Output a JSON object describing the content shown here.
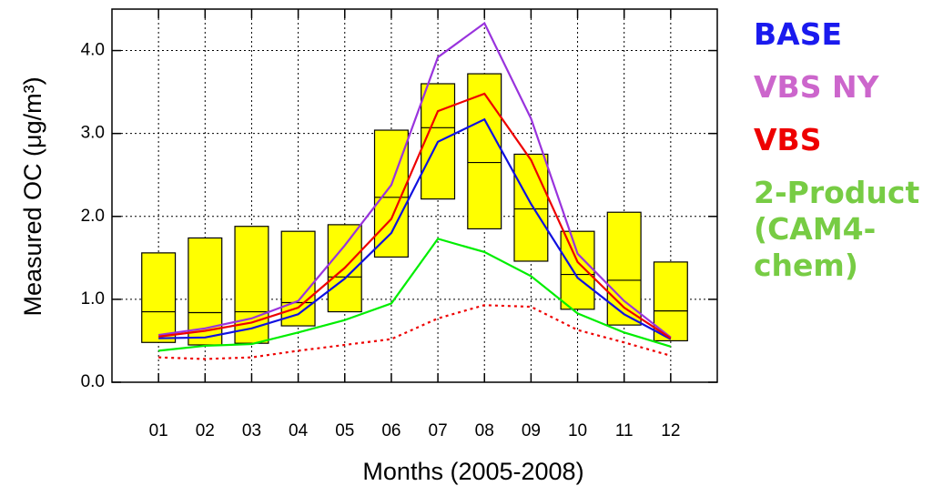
{
  "chart_data": {
    "type": "box-line",
    "x_label": "Months (2005-2008)",
    "y_label": "Measured OC (μg/m³)",
    "categories": [
      "01",
      "02",
      "03",
      "04",
      "05",
      "06",
      "07",
      "08",
      "09",
      "10",
      "11",
      "12"
    ],
    "ylim": [
      0,
      4.5
    ],
    "yticks": [
      {
        "value": 0,
        "label": "0.0"
      },
      {
        "value": 1,
        "label": "1.0"
      },
      {
        "value": 2,
        "label": "2.0"
      },
      {
        "value": 3,
        "label": "3.0"
      },
      {
        "value": 4,
        "label": "4.0"
      }
    ],
    "grid": true,
    "boxes": {
      "color": "#ffff00",
      "low": [
        0.48,
        0.45,
        0.47,
        0.68,
        0.85,
        1.51,
        2.21,
        1.85,
        1.46,
        0.88,
        0.69,
        0.5
      ],
      "median": [
        0.85,
        0.84,
        0.85,
        0.96,
        1.27,
        2.23,
        3.07,
        2.65,
        2.09,
        1.3,
        1.23,
        0.86
      ],
      "high": [
        1.56,
        1.74,
        1.88,
        1.82,
        1.9,
        3.04,
        3.6,
        3.72,
        2.75,
        1.82,
        2.05,
        1.45
      ]
    },
    "series": [
      {
        "name": "BASE",
        "color": "#1010e0",
        "label_color": "#1a1aee",
        "values": [
          0.53,
          0.54,
          0.65,
          0.82,
          1.25,
          1.8,
          2.9,
          3.17,
          2.15,
          1.26,
          0.82,
          0.52
        ]
      },
      {
        "name": "VBS NY",
        "color": "#9933dd",
        "label_color": "#cc66cc",
        "values": [
          0.57,
          0.65,
          0.77,
          0.98,
          1.65,
          2.38,
          3.92,
          4.33,
          3.18,
          1.55,
          0.98,
          0.54
        ]
      },
      {
        "name": "VBS",
        "color": "#ee0000",
        "label_color": "#ee0000",
        "values": [
          0.55,
          0.62,
          0.72,
          0.9,
          1.38,
          1.97,
          3.27,
          3.48,
          2.68,
          1.45,
          0.9,
          0.53
        ]
      },
      {
        "name": "2-Product (CAM4-chem)",
        "color": "#00ee00",
        "label_color": "#77cc44",
        "values": [
          0.38,
          0.44,
          0.46,
          0.6,
          0.75,
          0.95,
          1.73,
          1.57,
          1.28,
          0.83,
          0.6,
          0.43
        ]
      },
      {
        "color": "#ee0000",
        "dashed": true,
        "values": [
          0.3,
          0.28,
          0.3,
          0.38,
          0.45,
          0.52,
          0.77,
          0.93,
          0.91,
          0.63,
          0.48,
          0.32
        ]
      }
    ]
  }
}
